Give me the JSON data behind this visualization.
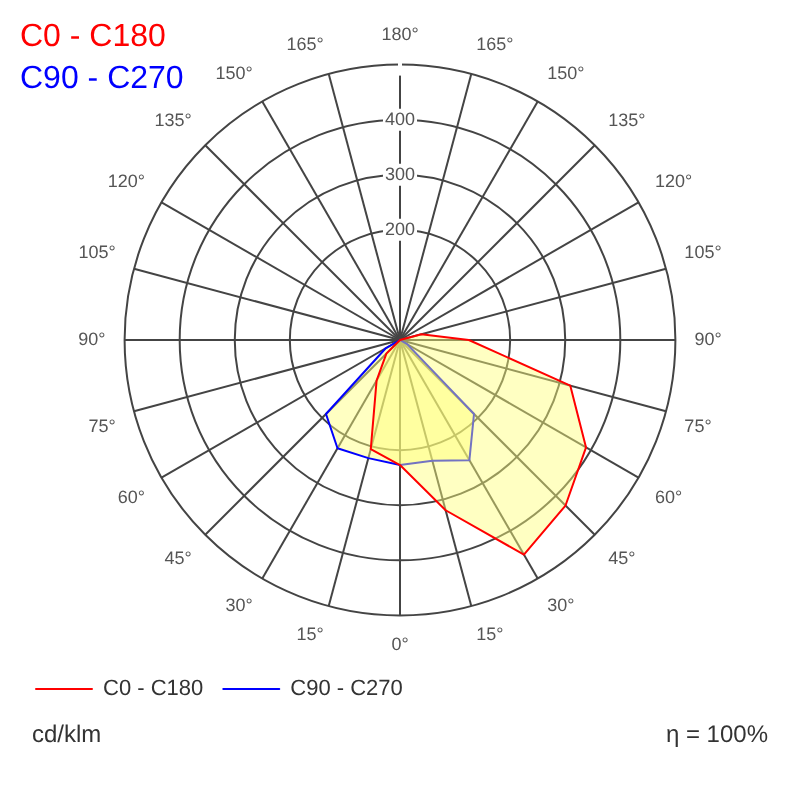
{
  "chart_data": {
    "type": "radar",
    "categories": [
      "180°",
      "165°",
      "150°",
      "135°",
      "120°",
      "105°",
      "90°",
      "75°",
      "60°",
      "45°",
      "30°",
      "15°",
      "0°",
      "15°",
      "30°",
      "45°",
      "60°",
      "75°",
      "90°",
      "105°",
      "120°",
      "135°",
      "150°",
      "165°"
    ],
    "series": [
      {
        "name": "C0 - C180",
        "color": "#ff0000",
        "values": [
          0,
          0,
          0,
          0,
          0,
          40,
          125,
          320,
          390,
          425,
          450,
          320,
          227,
          205,
          85,
          35,
          0,
          0,
          0,
          0,
          0,
          0,
          0,
          0
        ]
      },
      {
        "name": "C90 - C270",
        "color": "#0000ff",
        "values": [
          0,
          0,
          0,
          0,
          0,
          0,
          0,
          0,
          15,
          190,
          252,
          227,
          227,
          222,
          227,
          190,
          30,
          0,
          0,
          0,
          0,
          0,
          0,
          0
        ]
      }
    ],
    "ylim": [
      0,
      500
    ],
    "yticks": [
      200,
      300,
      400
    ],
    "ylabel": "cd/klm",
    "annotations": [
      "η = 100%"
    ],
    "grid": true,
    "legend": "bottom"
  }
}
